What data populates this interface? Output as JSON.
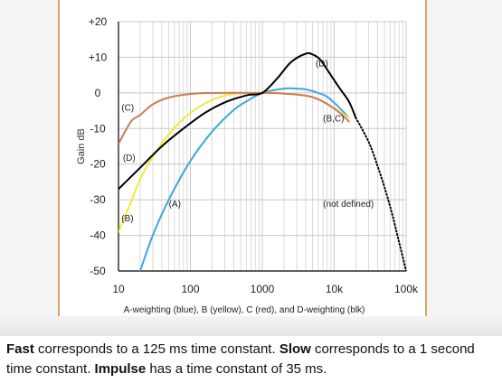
{
  "chart_data": {
    "type": "line",
    "title": "",
    "xlabel": "A-weighting (blue), B (yellow), C (red), and D-weighting (blk)",
    "ylabel": "Gain dB",
    "x_scale": "log",
    "xlim": [
      10,
      100000
    ],
    "ylim": [
      -50,
      20
    ],
    "x_ticks": [
      {
        "value": 10,
        "label": "10"
      },
      {
        "value": 100,
        "label": "100"
      },
      {
        "value": 1000,
        "label": "1000"
      },
      {
        "value": 10000,
        "label": "10k"
      },
      {
        "value": 100000,
        "label": "100k"
      }
    ],
    "y_ticks": [
      {
        "value": 20,
        "label": "+20"
      },
      {
        "value": 10,
        "label": "+10"
      },
      {
        "value": 0,
        "label": "0"
      },
      {
        "value": -10,
        "label": "-10"
      },
      {
        "value": -20,
        "label": "-20"
      },
      {
        "value": -30,
        "label": "-30"
      },
      {
        "value": -40,
        "label": "-40"
      },
      {
        "value": -50,
        "label": "-50"
      }
    ],
    "grid": true,
    "series": [
      {
        "key": "A",
        "color": "#39a8e0",
        "points": [
          [
            20,
            -50
          ],
          [
            30,
            -40
          ],
          [
            50,
            -30
          ],
          [
            100,
            -19.1
          ],
          [
            200,
            -10.9
          ],
          [
            400,
            -4.8
          ],
          [
            600,
            -2.4
          ],
          [
            1000,
            0
          ],
          [
            2000,
            1.2
          ],
          [
            3000,
            1.2
          ],
          [
            4000,
            1
          ],
          [
            6000,
            0
          ],
          [
            8000,
            -1.1
          ],
          [
            12000,
            -4.3
          ],
          [
            16000,
            -7
          ]
        ]
      },
      {
        "key": "B",
        "color": "#eeea3e",
        "points": [
          [
            10,
            -39
          ],
          [
            15,
            -30.5
          ],
          [
            20,
            -24.2
          ],
          [
            30,
            -18
          ],
          [
            50,
            -11.6
          ],
          [
            100,
            -5.6
          ],
          [
            200,
            -2
          ],
          [
            400,
            -0.3
          ],
          [
            1000,
            0
          ],
          [
            2000,
            -0.1
          ],
          [
            5000,
            -1.2
          ],
          [
            10000,
            -4.3
          ],
          [
            16000,
            -7
          ]
        ]
      },
      {
        "key": "C",
        "color": "#d0785a",
        "points": [
          [
            10,
            -14.3
          ],
          [
            15,
            -8
          ],
          [
            20,
            -6.2
          ],
          [
            30,
            -3.2
          ],
          [
            50,
            -1.3
          ],
          [
            100,
            -0.3
          ],
          [
            200,
            0
          ],
          [
            1000,
            0
          ],
          [
            2000,
            -0.2
          ],
          [
            5000,
            -1.2
          ],
          [
            10000,
            -4.4
          ],
          [
            16000,
            -8
          ]
        ]
      },
      {
        "key": "D",
        "color": "#000000",
        "points": [
          [
            10,
            -27
          ],
          [
            20,
            -21
          ],
          [
            40,
            -15
          ],
          [
            80,
            -10
          ],
          [
            160,
            -5.6
          ],
          [
            315,
            -2.5
          ],
          [
            630,
            -0.6
          ],
          [
            1000,
            0
          ],
          [
            1600,
            4
          ],
          [
            2500,
            8.6
          ],
          [
            4000,
            11
          ],
          [
            5000,
            10.8
          ],
          [
            6300,
            9.5
          ],
          [
            8000,
            6.5
          ],
          [
            12000,
            1.2
          ],
          [
            16000,
            -2.4
          ],
          [
            20000,
            -7
          ]
        ]
      },
      {
        "key": "D-undefined",
        "color": "#000000",
        "dashed": true,
        "points": [
          [
            20000,
            -7
          ],
          [
            25000,
            -10.5
          ],
          [
            32000,
            -15
          ],
          [
            40000,
            -20.5
          ],
          [
            50000,
            -26.5
          ],
          [
            63000,
            -33.5
          ],
          [
            80000,
            -42
          ],
          [
            100000,
            -50
          ]
        ]
      }
    ],
    "annotations": [
      {
        "text": "(A)",
        "x": 50,
        "y": -32
      },
      {
        "text": "(B)",
        "x": 11,
        "y": -36
      },
      {
        "text": "(C)",
        "x": 11,
        "y": -5
      },
      {
        "text": "(D)",
        "x": 11.5,
        "y": -19
      },
      {
        "text": "(D)",
        "x": 5500,
        "y": 7.5
      },
      {
        "text": "(B,C)",
        "x": 7000,
        "y": -8
      },
      {
        "text": "(not defined)",
        "x": 7000,
        "y": -32
      }
    ]
  },
  "caption": {
    "fast_term": "Fast",
    "fast_text": " corresponds to a 125 ms time constant. ",
    "slow_term": "Slow",
    "slow_text": " corresponds to a 1 second time constant. ",
    "impulse_term": "Impulse",
    "impulse_text": " has a time constant of 35 ms."
  }
}
